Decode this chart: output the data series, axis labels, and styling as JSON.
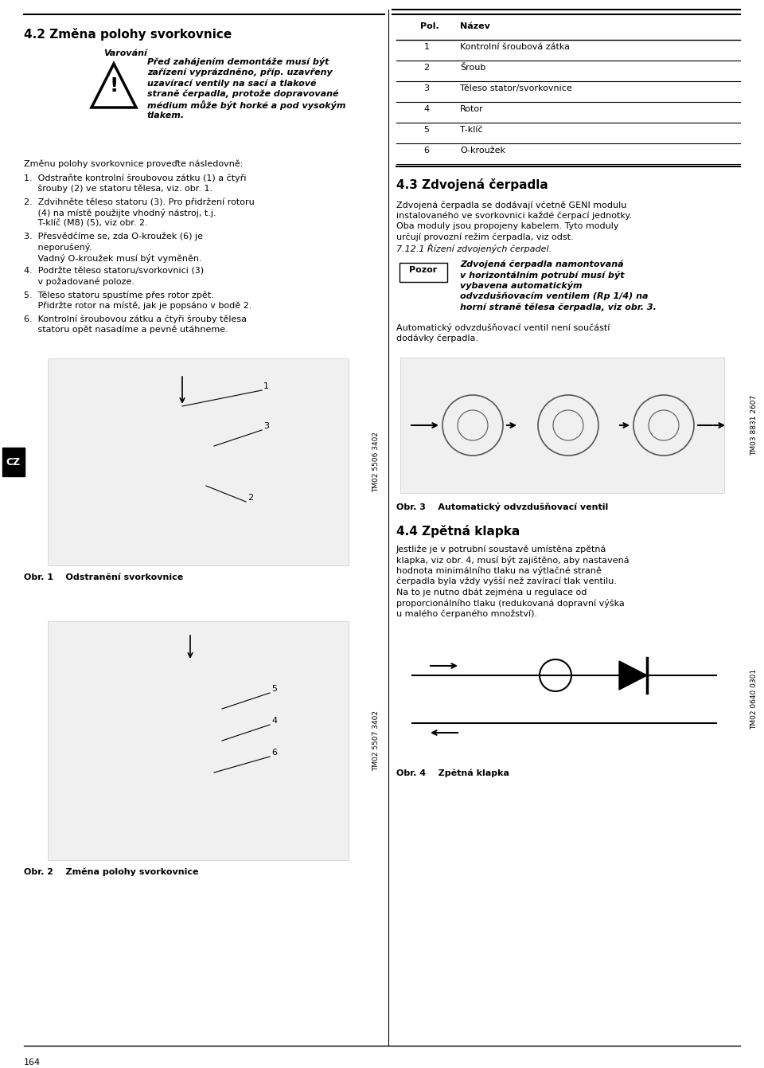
{
  "page_number": "164",
  "bg_color": "#ffffff",
  "section_42_title": "4.2 Změna polohy svorkovnice",
  "warning_title": "Varování",
  "warning_line1": "Před zahájením demontáže musí být",
  "warning_line2": "zařízení vyprázdněno, příp. uzavřeny",
  "warning_line3": "uzavírací ventily na sací a tlakové",
  "warning_line4": "straně čerpadla, protože dopravované",
  "warning_line5": "médium může být horké a pod vysokým",
  "warning_line6": "tlakem.",
  "steps_intro": "Změnu polohy svorkovnice proveďte následovně:",
  "step1a": "1.  Odstraňte kontrolní šroubovou zátku (1) a čtyři",
  "step1b": "     šrouby (2) ve statoru tělesa, viz. obr. 1.",
  "step2a": "2.  Zdvihněte těleso statoru (3). Pro přidržení rotoru",
  "step2b": "     (4) na místě použijte vhodný nástroj, t.j.",
  "step2c": "     T-klíč (M8) (5), viz obr. 2.",
  "step3a": "3.  Přesvědčíme se, zda O-kroužek (6) je",
  "step3b": "     neporušený.",
  "step3c": "     Vadný O-kroužek musí být vyměněn.",
  "step4a": "4.  Podržte těleso statoru/svorkovnici (3)",
  "step4b": "     v požadované poloze.",
  "step5a": "5.  Těleso statoru spustíme přes rotor zpět.",
  "step5b": "     Přidržte rotor na místě, jak je popsáno v bodě 2.",
  "step6a": "6.  Kontrolní šroubovou zátku a čtyři šrouby tělesa",
  "step6b": "     statoru opět nasadíme a pevně utáhneme.",
  "obr1_label": "Obr. 1",
  "obr1_desc": "Odstranění svorkovnice",
  "obr2_label": "Obr. 2",
  "obr2_desc": "Změna polohy svorkovnice",
  "tm02_5506": "TM02 5506 3402",
  "tm02_5507": "TM02 5507 3402",
  "table_col1_header": "Pol.",
  "table_col2_header": "Název",
  "table_rows": [
    [
      "1",
      "Kontrolní šroubová zátka"
    ],
    [
      "2",
      "Šroub"
    ],
    [
      "3",
      "Těleso stator/svorkovnice"
    ],
    [
      "4",
      "Rotor"
    ],
    [
      "5",
      "T-klíč"
    ],
    [
      "6",
      "O-kroužek"
    ]
  ],
  "section_43_title": "4.3 Zdvojená čerpadla",
  "s43_line1": "Zdvojená čerpadla se dodávají včetně GENI modulu",
  "s43_line2": "instalovaného ve svorkovnici každé čerpací jednotky.",
  "s43_line3": "Oba moduly jsou propojeny kabelem. Tyto moduly",
  "s43_line4": "určují provozní režim čerpadla, viz odst.",
  "s43_line5": "7.12.1 Řízení zdvojených čerpadel.",
  "pozor_label": "Pozor",
  "poz_line1": "Zdvojená čerpadla namontovaná",
  "poz_line2": "v horizontálním potrubí musí být",
  "poz_line3": "vybavena automatickým",
  "poz_line4": "odvzdušňovacím ventilem (Rp 1/4) na",
  "poz_line5": "horní straně tělesa čerpadla, viz obr. 3.",
  "auto_line1": "Automatický odvzdušňovací ventil není součástí",
  "auto_line2": "dodávky čerpadla.",
  "obr3_label": "Obr. 3",
  "obr3_desc": "Automatický odvzdušňovací ventil",
  "tm03_8831": "TM03 8831 2607",
  "section_44_title": "4.4 Zpětná klapka",
  "s44_line1": "Jestliže je v potrubní soustavě umístěna zpětná",
  "s44_line2": "klapka, viz obr. 4, musí být zajištěno, aby nastavená",
  "s44_line3": "hodnota minimálního tlaku na výtlačné straně",
  "s44_line4": "čerpadla byla vždy vyšší než zavírací tlak ventilu.",
  "s44_line5": "Na to je nutno dbát zejména u regulace od",
  "s44_line6": "proporcionálního tlaku (redukovaná dopravní výška",
  "s44_line7": "u malého čerpaného množství).",
  "obr4_label": "Obr. 4",
  "obr4_desc": "Zpětná klapka",
  "tm02_0640": "TM02 0640 0301",
  "cz_label": "CZ"
}
